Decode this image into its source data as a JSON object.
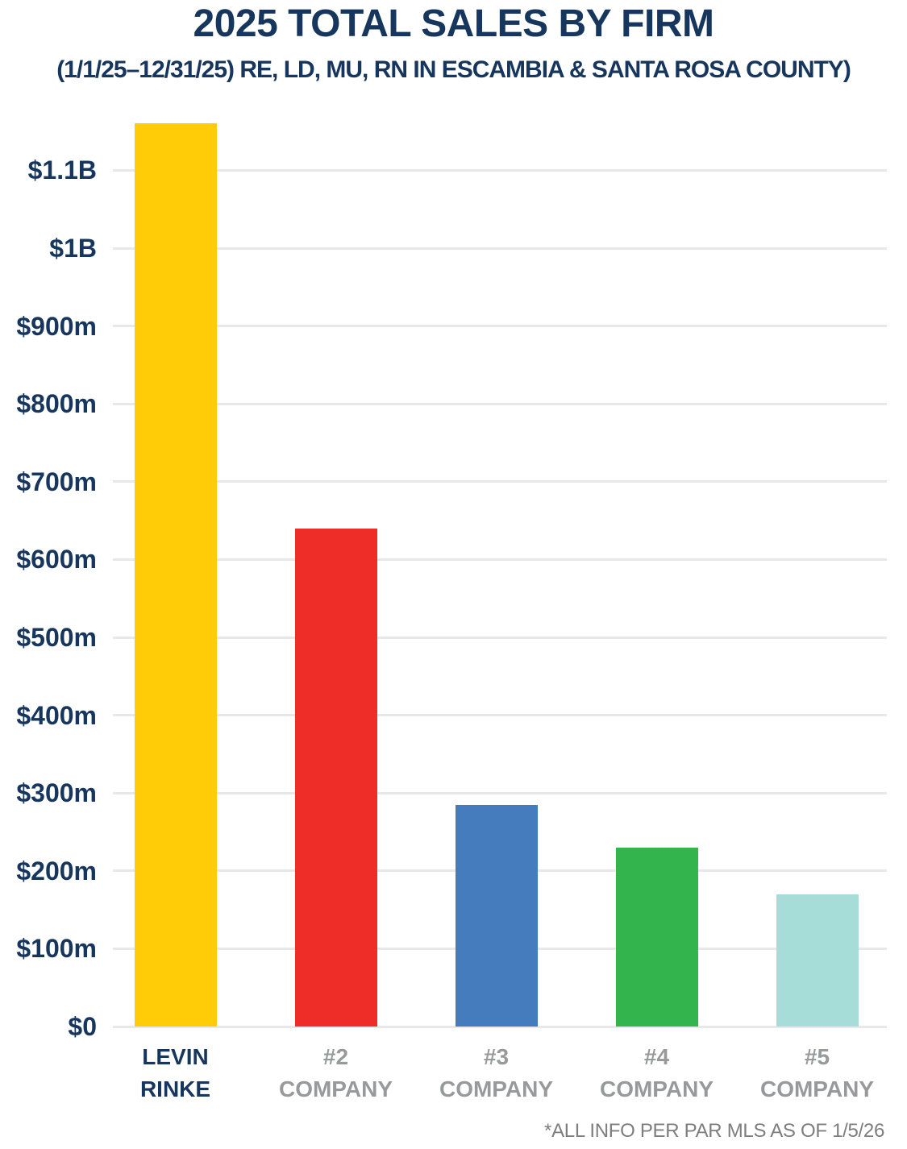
{
  "chart_data": {
    "type": "bar",
    "title": "2025 TOTAL SALES BY FIRM",
    "subtitle": "(1/1/25–12/31/25) RE, LD, MU, RN IN ESCAMBIA & SANTA ROSA COUNTY)",
    "footnote": "*ALL INFO PER PAR MLS AS OF 1/5/26",
    "categories": [
      "LEVIN RINKE",
      "#2 COMPANY",
      "#3 COMPANY",
      "#4 COMPANY",
      "#5 COMPANY"
    ],
    "category_lines": [
      [
        "LEVIN",
        "RINKE"
      ],
      [
        "#2",
        "COMPANY"
      ],
      [
        "#3",
        "COMPANY"
      ],
      [
        "#4",
        "COMPANY"
      ],
      [
        "#5",
        "COMPANY"
      ]
    ],
    "values_millions": [
      1160,
      640,
      285,
      230,
      170
    ],
    "bar_colors": [
      "#FFCC07",
      "#EE2D29",
      "#457CBE",
      "#34B44C",
      "#A6DDD8"
    ],
    "category_label_colors": [
      "#17365D",
      "#98999B",
      "#98999B",
      "#98999B",
      "#98999B"
    ],
    "ylabel": "",
    "xlabel": "",
    "ylim": [
      0,
      1160
    ],
    "grid": "horizontal",
    "legend": "none",
    "yticks": [
      {
        "label": "$0",
        "value": 0
      },
      {
        "label": "$100m",
        "value": 100
      },
      {
        "label": "$200m",
        "value": 200
      },
      {
        "label": "$300m",
        "value": 300
      },
      {
        "label": "$400m",
        "value": 400
      },
      {
        "label": "$500m",
        "value": 500
      },
      {
        "label": "$600m",
        "value": 600
      },
      {
        "label": "$700m",
        "value": 700
      },
      {
        "label": "$800m",
        "value": 800
      },
      {
        "label": "$900m",
        "value": 900
      },
      {
        "label": "$1B",
        "value": 1000
      },
      {
        "label": "$1.1B",
        "value": 1100
      }
    ],
    "colors": {
      "title_navy": "#17365D",
      "gray_label": "#98999B",
      "footnote_gray": "#7E7E7E",
      "gridline": "#E8E8E8"
    }
  }
}
